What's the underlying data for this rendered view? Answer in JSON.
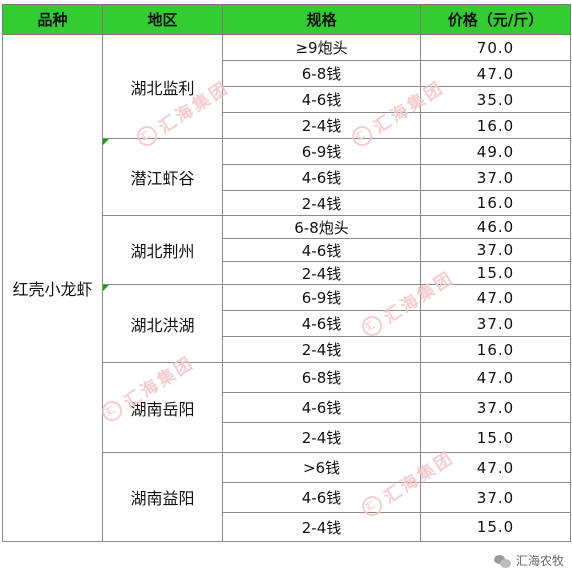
{
  "table": {
    "headers": [
      "品种",
      "地区",
      "规格",
      "价格（元/斤）"
    ],
    "category": "红壳小龙虾",
    "regions": [
      {
        "name": "湖北监利",
        "rows": [
          {
            "spec": "≥9炮头",
            "price": "70.0"
          },
          {
            "spec": "6-8钱",
            "price": "47.0"
          },
          {
            "spec": "4-6钱",
            "price": "35.0"
          },
          {
            "spec": "2-4钱",
            "price": "16.0"
          }
        ]
      },
      {
        "name": "潜江虾谷",
        "rows": [
          {
            "spec": "6-9钱",
            "price": "49.0"
          },
          {
            "spec": "4-6钱",
            "price": "37.0"
          },
          {
            "spec": "2-4钱",
            "price": "16.0"
          }
        ]
      },
      {
        "name": "湖北荆州",
        "rows": [
          {
            "spec": "6-8炮头",
            "price": "46.0"
          },
          {
            "spec": "4-6钱",
            "price": "37.0"
          },
          {
            "spec": "2-4钱",
            "price": "15.0"
          }
        ]
      },
      {
        "name": "湖北洪湖",
        "rows": [
          {
            "spec": "6-9钱",
            "price": "47.0"
          },
          {
            "spec": "4-6钱",
            "price": "37.0"
          },
          {
            "spec": "2-4钱",
            "price": "16.0"
          }
        ]
      },
      {
        "name": "湖南岳阳",
        "rows": [
          {
            "spec": "6-8钱",
            "price": "47.0"
          },
          {
            "spec": "4-6钱",
            "price": "37.0"
          },
          {
            "spec": "2-4钱",
            "price": "15.0"
          }
        ]
      },
      {
        "name": "湖南益阳",
        "rows": [
          {
            "spec": ">6钱",
            "price": "47.0"
          },
          {
            "spec": "4-6钱",
            "price": "37.0"
          },
          {
            "spec": "2-4钱",
            "price": "15.0"
          }
        ]
      }
    ]
  },
  "watermark": {
    "text": "汇海集团",
    "logo": "汇"
  },
  "footer": {
    "brand": "汇海农牧",
    "icon": "wechat-icon"
  },
  "colors": {
    "header_bg": "#33cc33",
    "watermark": "#f3c6c6",
    "border": "#8a8a8a"
  }
}
